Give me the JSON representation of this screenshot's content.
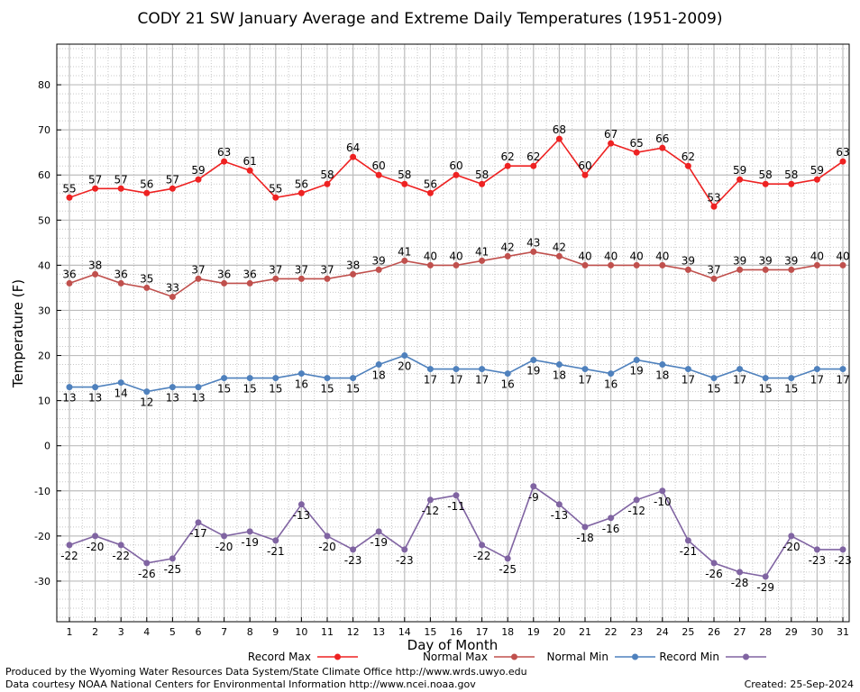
{
  "chart_data": {
    "type": "line",
    "title": "CODY 21 SW January Average and Extreme Daily Temperatures (1951-2009)",
    "xlabel": "Day of Month",
    "ylabel": "Temperature (F)",
    "ylim": [
      -39,
      89
    ],
    "yticks": [
      80,
      70,
      60,
      50,
      40,
      30,
      20,
      10,
      0,
      -10,
      -20,
      -30
    ],
    "x": [
      1,
      2,
      3,
      4,
      5,
      6,
      7,
      8,
      9,
      10,
      11,
      12,
      13,
      14,
      15,
      16,
      17,
      18,
      19,
      20,
      21,
      22,
      23,
      24,
      25,
      26,
      27,
      28,
      29,
      30,
      31
    ],
    "grid": true,
    "legend_position": "bottom",
    "series": [
      {
        "name": "Record Max",
        "color": "#ee2222",
        "label_pos": "above",
        "values": [
          55,
          57,
          57,
          56,
          57,
          59,
          63,
          61,
          55,
          56,
          58,
          64,
          60,
          58,
          56,
          60,
          58,
          62,
          62,
          68,
          60,
          67,
          65,
          66,
          62,
          53,
          59,
          58,
          58,
          59,
          63
        ]
      },
      {
        "name": "Normal Max",
        "color": "#c0504d",
        "label_pos": "above",
        "values": [
          36,
          38,
          36,
          35,
          33,
          37,
          36,
          36,
          37,
          37,
          37,
          38,
          39,
          41,
          40,
          40,
          41,
          42,
          43,
          42,
          40,
          40,
          40,
          40,
          39,
          37,
          39,
          39,
          39,
          40,
          40
        ]
      },
      {
        "name": "Normal Min",
        "color": "#4f81bd",
        "label_pos": "below",
        "values": [
          13,
          13,
          14,
          12,
          13,
          13,
          15,
          15,
          15,
          16,
          15,
          15,
          18,
          20,
          17,
          17,
          17,
          16,
          19,
          18,
          17,
          16,
          19,
          18,
          17,
          15,
          17,
          15,
          15,
          17,
          17
        ]
      },
      {
        "name": "Record Min",
        "color": "#8064a2",
        "label_pos": "below",
        "values": [
          -22,
          -20,
          -22,
          -26,
          -25,
          -17,
          -20,
          -19,
          -21,
          -13,
          -20,
          -23,
          -19,
          -23,
          -12,
          -11,
          -22,
          -25,
          -9,
          -13,
          -18,
          -16,
          -12,
          -10,
          -21,
          -26,
          -28,
          -29,
          -20,
          -23,
          -23
        ]
      }
    ]
  },
  "footer": {
    "produced_by": "Produced by the Wyoming Water Resources Data System/State Climate Office http://www.wrds.uwyo.edu",
    "data_courtesy": "Data courtesy NOAA National Centers for Environmental Information http://www.ncei.noaa.gov",
    "created": "Created:  25-Sep-2024"
  }
}
